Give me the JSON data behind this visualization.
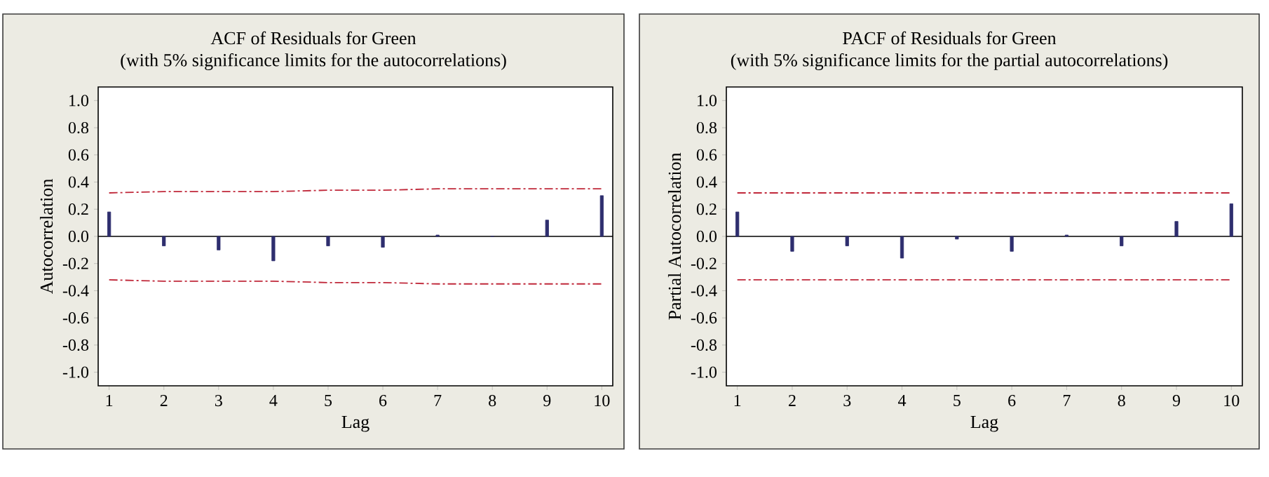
{
  "chart_data": [
    {
      "type": "bar",
      "title": "ACF of Residuals for Green",
      "subtitle": "(with 5% significance limits for the autocorrelations)",
      "xlabel": "Lag",
      "ylabel": "Autocorrelation",
      "x": [
        1,
        2,
        3,
        4,
        5,
        6,
        7,
        8,
        9,
        10
      ],
      "xlim": [
        0.8,
        10.2
      ],
      "xticks": [
        1,
        2,
        3,
        4,
        5,
        6,
        7,
        8,
        9,
        10
      ],
      "ylim": [
        -1.1,
        1.1
      ],
      "yticks": [
        {
          "value": -1,
          "label": "-1.0"
        },
        {
          "value": -0.8,
          "label": "-0.8"
        },
        {
          "value": -0.6,
          "label": "-0.6"
        },
        {
          "value": -0.4,
          "label": "-0.4"
        },
        {
          "value": -0.2,
          "label": "-0.2"
        },
        {
          "value": 0,
          "label": "0.0"
        },
        {
          "value": 0.2,
          "label": "0.2"
        },
        {
          "value": 0.4,
          "label": "0.4"
        },
        {
          "value": 0.6,
          "label": "0.6"
        },
        {
          "value": 0.8,
          "label": "0.8"
        },
        {
          "value": 1,
          "label": "1.0"
        }
      ],
      "series": [
        {
          "color": "#2e2e6e",
          "values": [
            0.18,
            -0.07,
            -0.1,
            -0.18,
            -0.07,
            -0.08,
            0.01,
            0.0,
            0.12,
            0.3
          ]
        },
        {
          "type": "line",
          "color": "#c0283a",
          "line_style": "dashed",
          "values": [
            0.32,
            0.33,
            0.33,
            0.33,
            0.34,
            0.34,
            0.35,
            0.35,
            0.35,
            0.35
          ]
        },
        {
          "type": "line",
          "color": "#c0283a",
          "line_style": "dashed",
          "values": [
            -0.32,
            -0.33,
            -0.33,
            -0.33,
            -0.34,
            -0.34,
            -0.35,
            -0.35,
            -0.35,
            -0.35
          ]
        }
      ]
    },
    {
      "type": "bar",
      "title": "PACF of Residuals for Green",
      "subtitle": "(with 5% significance limits for the partial autocorrelations)",
      "xlabel": "Lag",
      "ylabel": "Partial Autocorrelation",
      "x": [
        1,
        2,
        3,
        4,
        5,
        6,
        7,
        8,
        9,
        10
      ],
      "xlim": [
        0.8,
        10.2
      ],
      "xticks": [
        1,
        2,
        3,
        4,
        5,
        6,
        7,
        8,
        9,
        10
      ],
      "ylim": [
        -1.1,
        1.1
      ],
      "yticks": [
        {
          "value": -1,
          "label": "-1.0"
        },
        {
          "value": -0.8,
          "label": "-0.8"
        },
        {
          "value": -0.6,
          "label": "-0.6"
        },
        {
          "value": -0.4,
          "label": "-0.4"
        },
        {
          "value": -0.2,
          "label": "-0.2"
        },
        {
          "value": 0,
          "label": "0.0"
        },
        {
          "value": 0.2,
          "label": "0.2"
        },
        {
          "value": 0.4,
          "label": "0.4"
        },
        {
          "value": 0.6,
          "label": "0.6"
        },
        {
          "value": 0.8,
          "label": "0.8"
        },
        {
          "value": 1,
          "label": "1.0"
        }
      ],
      "series": [
        {
          "color": "#2e2e6e",
          "values": [
            0.18,
            -0.11,
            -0.07,
            -0.16,
            -0.02,
            -0.11,
            0.01,
            -0.07,
            0.11,
            0.24
          ]
        }
      ],
      "ref_lines": [
        {
          "axis": "y",
          "value": 0.32,
          "color": "#c0283a",
          "line_style": "dashed"
        },
        {
          "axis": "y",
          "value": -0.32,
          "color": "#c0283a",
          "line_style": "dashed"
        }
      ]
    }
  ]
}
